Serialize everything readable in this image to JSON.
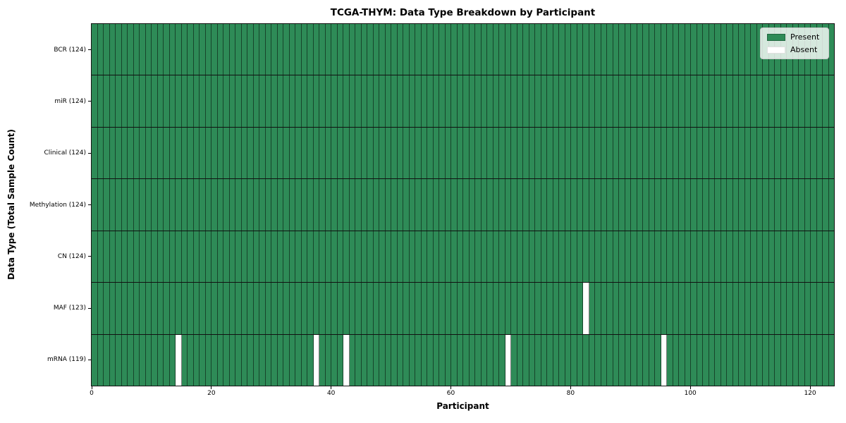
{
  "chart_data": {
    "type": "heatmap",
    "title": "TCGA-THYM: Data Type Breakdown by Participant",
    "xlabel": "Participant",
    "ylabel": "Data Type (Total Sample Count)",
    "n_participants": 124,
    "xlim": [
      0,
      124
    ],
    "x_ticks": [
      0,
      20,
      40,
      60,
      80,
      100,
      120
    ],
    "grid": "cell-edges",
    "legend_position": "upper right",
    "colors": {
      "present": "#2e8b57",
      "absent": "#ffffff"
    },
    "legend_items": [
      {
        "label": "Present",
        "key": "present"
      },
      {
        "label": "Absent",
        "key": "absent"
      }
    ],
    "rows": [
      {
        "label": "BCR (124)",
        "data_type": "BCR",
        "present_count": 124,
        "absent_participants": []
      },
      {
        "label": "miR (124)",
        "data_type": "miR",
        "present_count": 124,
        "absent_participants": []
      },
      {
        "label": "Clinical (124)",
        "data_type": "Clinical",
        "present_count": 124,
        "absent_participants": []
      },
      {
        "label": "Methylation (124)",
        "data_type": "Methylation",
        "present_count": 124,
        "absent_participants": []
      },
      {
        "label": "CN (124)",
        "data_type": "CN",
        "present_count": 124,
        "absent_participants": []
      },
      {
        "label": "MAF (123)",
        "data_type": "MAF",
        "present_count": 123,
        "absent_participants": [
          82
        ]
      },
      {
        "label": "mRNA (119)",
        "data_type": "mRNA",
        "present_count": 119,
        "absent_participants": [
          14,
          37,
          42,
          69,
          95
        ]
      }
    ]
  }
}
